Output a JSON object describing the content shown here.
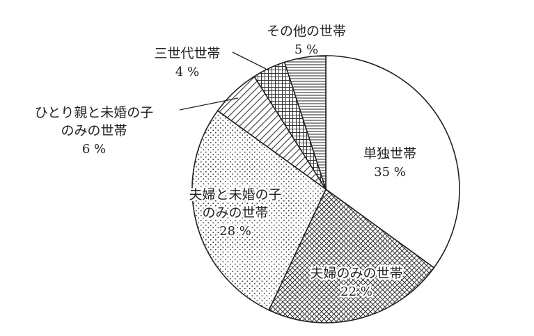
{
  "chart_data": {
    "type": "pie",
    "start_angle_deg": 0,
    "direction": "clockwise",
    "slices": [
      {
        "label_lines": [
          "単独世帯"
        ],
        "value": 35,
        "value_text": "35 %",
        "pattern": "blank"
      },
      {
        "label_lines": [
          "夫婦のみの世帯"
        ],
        "value": 22,
        "value_text": "22 %",
        "pattern": "crosshatch-diagonal"
      },
      {
        "label_lines": [
          "夫婦と未婚の子",
          "のみの世帯"
        ],
        "value": 28,
        "value_text": "28 %",
        "pattern": "dots"
      },
      {
        "label_lines": [
          "ひとり親と未婚の子",
          "のみの世帯"
        ],
        "value": 6,
        "value_text": "6 %",
        "pattern": "diagonal-lines"
      },
      {
        "label_lines": [
          "三世代世帯"
        ],
        "value": 4,
        "value_text": "4 %",
        "pattern": "grid"
      },
      {
        "label_lines": [
          "その他の世帯"
        ],
        "value": 5,
        "value_text": "5 %",
        "pattern": "horizontal-lines"
      }
    ],
    "colors": {
      "stroke": "#222222",
      "fill": "#ffffff"
    }
  }
}
